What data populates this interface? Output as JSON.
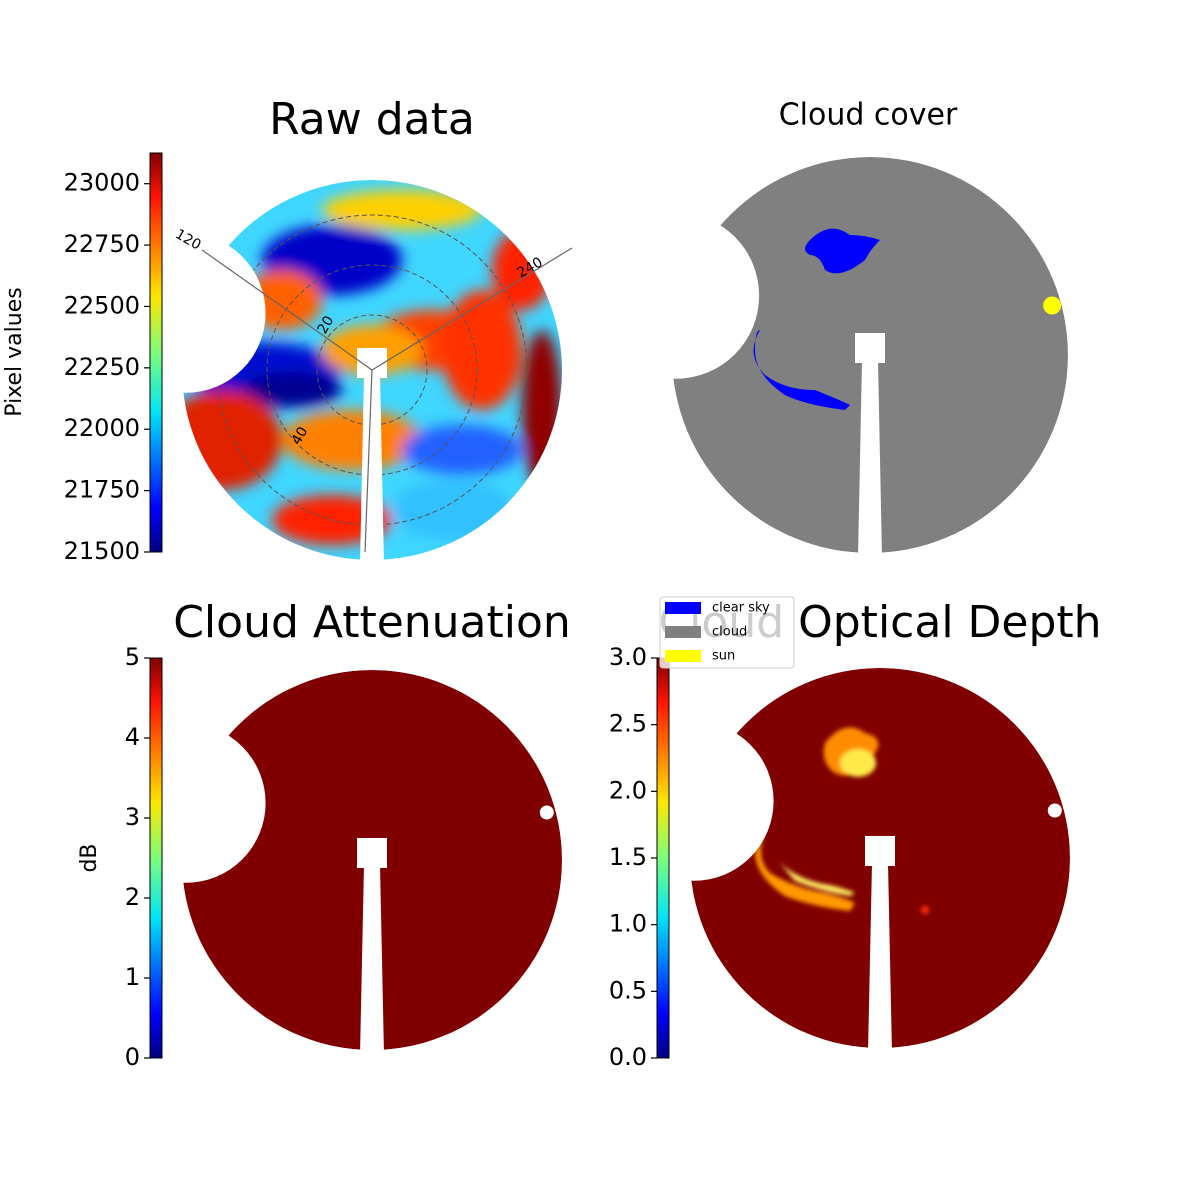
{
  "chart_data": [
    {
      "type": "image",
      "title": "Raw data",
      "colorbar_label": "Pixel values",
      "colormap": "jet",
      "ylim": [
        21500,
        23125
      ],
      "yticks": [
        21500,
        21750,
        22000,
        22250,
        22500,
        22750,
        23000
      ],
      "annotations": [
        "120",
        "240",
        "20",
        "40"
      ]
    },
    {
      "type": "image",
      "title": "Cloud cover",
      "categories": [
        "clear sky",
        "cloud",
        "sun"
      ],
      "colors": [
        "#0000ff",
        "#808080",
        "#ffff00"
      ]
    },
    {
      "type": "image",
      "title": "Cloud Attenuation",
      "colorbar_label": "dB",
      "colormap": "jet",
      "ylim": [
        0,
        5
      ],
      "yticks": [
        0,
        1,
        2,
        3,
        4,
        5
      ]
    },
    {
      "type": "image",
      "title": "Cloud Optical Depth",
      "colormap": "jet",
      "ylim": [
        0,
        3
      ],
      "yticks": [
        {
          "value": 0,
          "label": "0.0"
        },
        0.5,
        {
          "value": 1,
          "label": "1.0"
        },
        1.5,
        {
          "value": 2,
          "label": "2.0"
        },
        2.5,
        {
          "value": 3,
          "label": "3.0"
        }
      ]
    }
  ]
}
